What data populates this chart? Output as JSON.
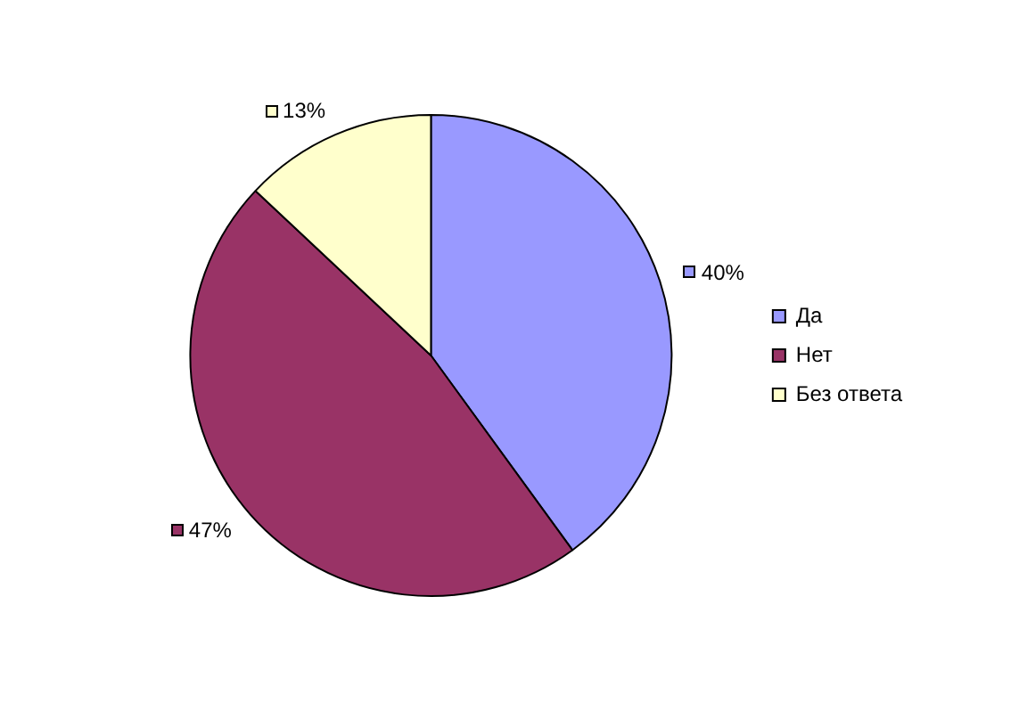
{
  "chart_data": {
    "type": "pie",
    "categories": [
      "Да",
      "Нет",
      "Без ответа"
    ],
    "values": [
      40,
      47,
      13
    ],
    "colors": [
      "#9999ff",
      "#993366",
      "#ffffcc"
    ],
    "value_labels": [
      "40%",
      "47%",
      "13%"
    ],
    "legend": "right"
  }
}
